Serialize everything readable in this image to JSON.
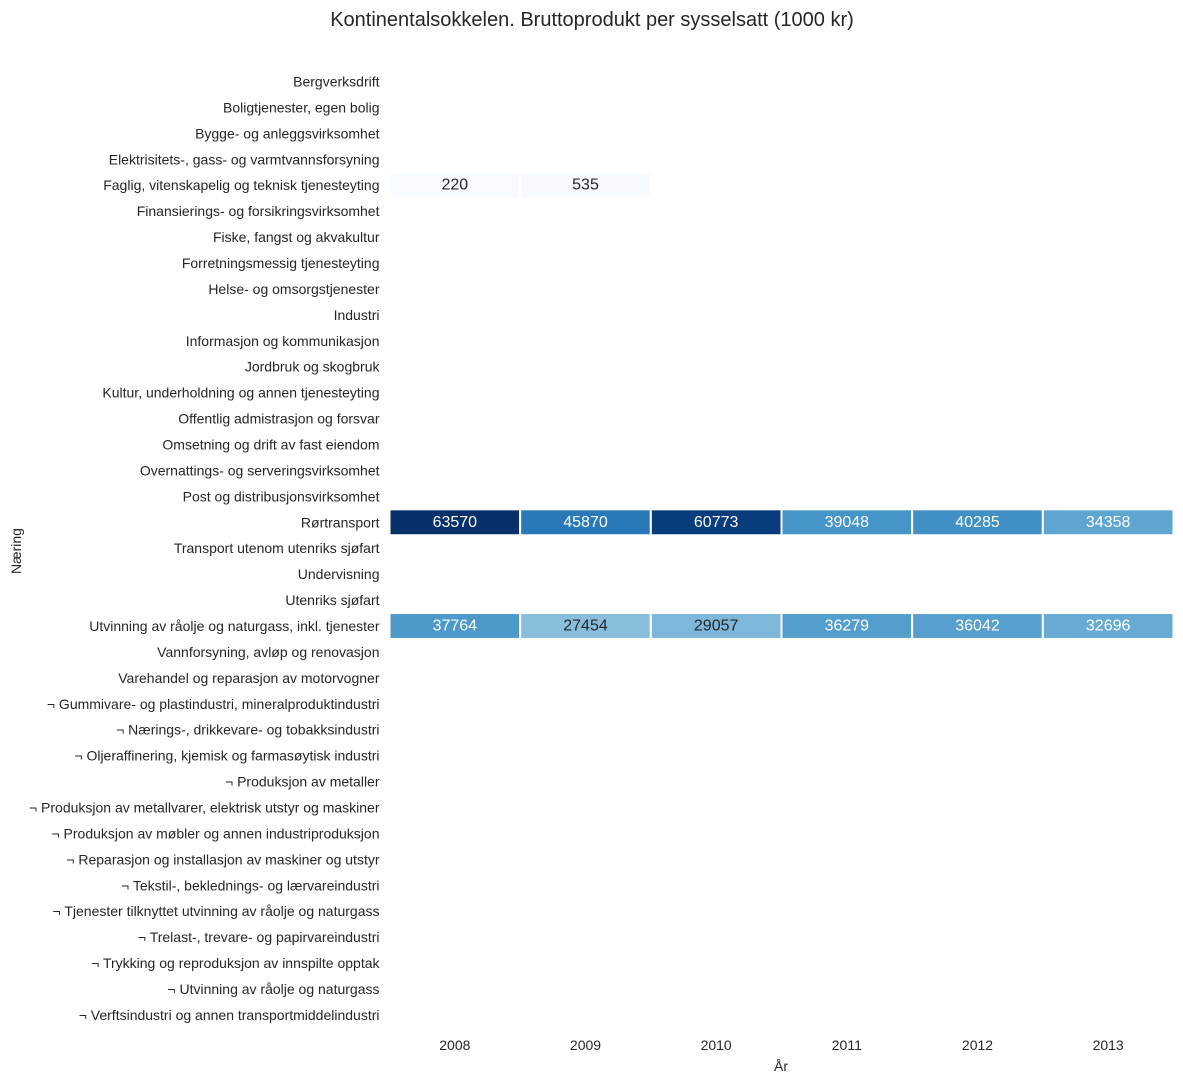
{
  "chart_data": {
    "type": "heatmap",
    "title": "Kontinentalsokkelen. Bruttoprodukt per sysselsatt (1000 kr)",
    "xlabel": "År",
    "ylabel": "Næring",
    "x": [
      "2008",
      "2009",
      "2010",
      "2011",
      "2012",
      "2013"
    ],
    "y": [
      "Bergverksdrift",
      "Boligtjenester, egen bolig",
      "Bygge- og anleggsvirksomhet",
      "Elektrisitets-, gass- og varmtvannsforsyning",
      "Faglig, vitenskapelig og teknisk tjenesteyting",
      "Finansierings- og forsikringsvirksomhet",
      "Fiske, fangst og akvakultur",
      "Forretningsmessig tjenesteyting",
      "Helse- og omsorgstjenester",
      "Industri",
      "Informasjon og kommunikasjon",
      "Jordbruk og skogbruk",
      "Kultur, underholdning og annen tjenesteyting",
      "Offentlig admistrasjon og forsvar",
      "Omsetning og drift av fast eiendom",
      "Overnattings- og serveringsvirksomhet",
      "Post og distribusjonsvirksomhet",
      "Rørtransport",
      "Transport utenom utenriks sjøfart",
      "Undervisning",
      "Utenriks sjøfart",
      "Utvinning av råolje og naturgass, inkl. tjenester",
      "Vannforsyning, avløp og renovasjon",
      "Varehandel og reparasjon av motorvogner",
      "¬ Gummivare- og plastindustri, mineralproduktindustri",
      "¬ Nærings-, drikkevare- og tobakksindustri",
      "¬ Oljeraffinering, kjemisk og farmasøytisk industri",
      "¬ Produksjon av metaller",
      "¬ Produksjon av metallvarer, elektrisk utstyr og maskiner",
      "¬ Produksjon av møbler og annen industriproduksjon",
      "¬ Reparasjon og installasjon av maskiner og utstyr",
      "¬ Tekstil-, beklednings- og lærvareindustri",
      "¬ Tjenester tilknyttet utvinning av råolje og naturgass",
      "¬ Trelast-, trevare- og papirvareindustri",
      "¬ Trykking og reproduksjon av innspilte opptak",
      "¬ Utvinning av råolje og naturgass",
      "¬ Verftsindustri og annen transportmiddelindustri"
    ],
    "values": [
      [
        null,
        null,
        null,
        null,
        null,
        null
      ],
      [
        null,
        null,
        null,
        null,
        null,
        null
      ],
      [
        null,
        null,
        null,
        null,
        null,
        null
      ],
      [
        null,
        null,
        null,
        null,
        null,
        null
      ],
      [
        220,
        535,
        null,
        null,
        null,
        null
      ],
      [
        null,
        null,
        null,
        null,
        null,
        null
      ],
      [
        null,
        null,
        null,
        null,
        null,
        null
      ],
      [
        null,
        null,
        null,
        null,
        null,
        null
      ],
      [
        null,
        null,
        null,
        null,
        null,
        null
      ],
      [
        null,
        null,
        null,
        null,
        null,
        null
      ],
      [
        null,
        null,
        null,
        null,
        null,
        null
      ],
      [
        null,
        null,
        null,
        null,
        null,
        null
      ],
      [
        null,
        null,
        null,
        null,
        null,
        null
      ],
      [
        null,
        null,
        null,
        null,
        null,
        null
      ],
      [
        null,
        null,
        null,
        null,
        null,
        null
      ],
      [
        null,
        null,
        null,
        null,
        null,
        null
      ],
      [
        null,
        null,
        null,
        null,
        null,
        null
      ],
      [
        63570,
        45870,
        60773,
        39048,
        40285,
        34358
      ],
      [
        null,
        null,
        null,
        null,
        null,
        null
      ],
      [
        null,
        null,
        null,
        null,
        null,
        null
      ],
      [
        null,
        null,
        null,
        null,
        null,
        null
      ],
      [
        37764,
        27454,
        29057,
        36279,
        36042,
        32696
      ],
      [
        null,
        null,
        null,
        null,
        null,
        null
      ],
      [
        null,
        null,
        null,
        null,
        null,
        null
      ],
      [
        null,
        null,
        null,
        null,
        null,
        null
      ],
      [
        null,
        null,
        null,
        null,
        null,
        null
      ],
      [
        null,
        null,
        null,
        null,
        null,
        null
      ],
      [
        null,
        null,
        null,
        null,
        null,
        null
      ],
      [
        null,
        null,
        null,
        null,
        null,
        null
      ],
      [
        null,
        null,
        null,
        null,
        null,
        null
      ],
      [
        null,
        null,
        null,
        null,
        null,
        null
      ],
      [
        null,
        null,
        null,
        null,
        null,
        null
      ],
      [
        null,
        null,
        null,
        null,
        null,
        null
      ],
      [
        null,
        null,
        null,
        null,
        null,
        null
      ],
      [
        null,
        null,
        null,
        null,
        null,
        null
      ],
      [
        null,
        null,
        null,
        null,
        null,
        null
      ],
      [
        null,
        null,
        null,
        null,
        null,
        null
      ]
    ],
    "colormap": "Blues",
    "vmin": 220,
    "vmax": 63570,
    "annotations": true,
    "grid": false,
    "colorbar": false,
    "colors": {
      "cell_low": "#f7fbff",
      "cell_high": "#08306b",
      "text_dark": "#262626",
      "text_light": "#ffffff",
      "label": "#262626"
    }
  }
}
